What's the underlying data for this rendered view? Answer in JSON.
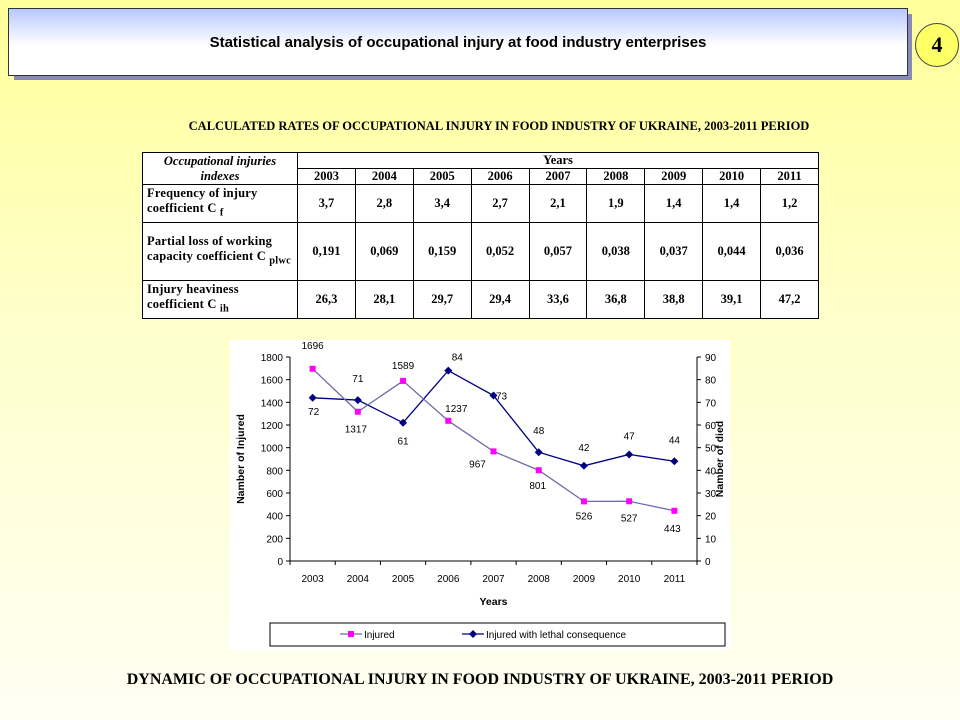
{
  "header": {
    "title": "Statistical analysis of occupational injury at food industry enterprises",
    "page_number": "4"
  },
  "table": {
    "title": "CALCULATED RATES OF OCCUPATIONAL INJURY IN FOOD INDUSTRY OF UKRAINE, 2003-2011 PERIOD",
    "col_header": "Occupational injuries indexes",
    "years_header": "Years",
    "years": [
      "2003",
      "2004",
      "2005",
      "2006",
      "2007",
      "2008",
      "2009",
      "2010",
      "2011"
    ],
    "rows": [
      {
        "label": "Frequency of injury coefficient C",
        "sub": "f",
        "values": [
          "3,7",
          "2,8",
          "3,4",
          "2,7",
          "2,1",
          "1,9",
          "1,4",
          "1,4",
          "1,2"
        ]
      },
      {
        "label": "Partial loss of working capacity coefficient C",
        "sub": "plwc",
        "values": [
          "0,191",
          "0,069",
          "0,159",
          "0,052",
          "0,057",
          "0,038",
          "0,037",
          "0,044",
          "0,036"
        ]
      },
      {
        "label": "Injury heaviness coefficient C",
        "sub": "ih",
        "values": [
          "26,3",
          "28,1",
          "29,7",
          "29,4",
          "33,6",
          "36,8",
          "38,8",
          "39,1",
          "47,2"
        ]
      }
    ]
  },
  "chart_data": {
    "type": "line",
    "x": [
      "2003",
      "2004",
      "2005",
      "2006",
      "2007",
      "2008",
      "2009",
      "2010",
      "2011"
    ],
    "xlabel": "Years",
    "ylabel": "Namber of Injured",
    "y2label": "Namber of died",
    "ylim": [
      0,
      1800
    ],
    "y2lim": [
      0,
      90
    ],
    "yticks": [
      0,
      200,
      400,
      600,
      800,
      1000,
      1200,
      1400,
      1600,
      1800
    ],
    "y2ticks": [
      0,
      10,
      20,
      30,
      40,
      50,
      60,
      70,
      80,
      90
    ],
    "legend_position": "bottom",
    "series": [
      {
        "name": "Injured",
        "axis": "left",
        "color": "#ff00ff",
        "marker": "square",
        "values": [
          1696,
          1317,
          1589,
          1237,
          967,
          801,
          526,
          527,
          443
        ]
      },
      {
        "name": "Injured with lethal consequence",
        "axis": "right",
        "color": "#000080",
        "marker": "diamond",
        "values": [
          72,
          71,
          61,
          84,
          73,
          48,
          42,
          47,
          44
        ]
      }
    ]
  },
  "footer": {
    "title": "DYNAMIC OF OCCUPATIONAL INJURY IN FOOD INDUSTRY OF UKRAINE, 2003-2011 PERIOD"
  }
}
